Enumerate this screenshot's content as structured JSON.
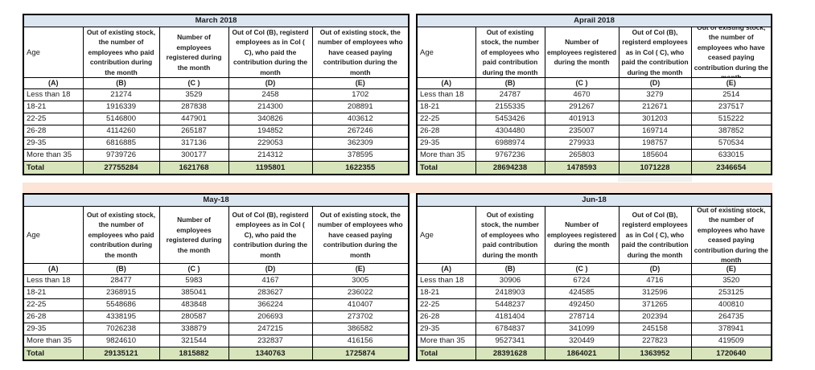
{
  "colors": {
    "title_bar_bg": "#dce6f1",
    "total_row_bg": "#d7e4bc",
    "divider_band_bg": "#fce4d6",
    "border": "#000000",
    "text": "#1c1c1c"
  },
  "column_headers": [
    "Age",
    "Out of existing stock, the number of employees who paid contribution during the month",
    "Number of employees registered during the month",
    "Out of Col (B), registerd employees as in Col ( C), who paid the contribution during the month",
    "Out of existing stock, the number of  employees who have ceased paying contribution during the month"
  ],
  "letter_row": [
    "(A)",
    "(B)",
    "(C )",
    "(D)",
    "(E)"
  ],
  "age_groups": [
    "Less than 18",
    "18-21",
    "22-25",
    "26-28",
    "29-35",
    "More than 35"
  ],
  "total_label": "Total",
  "tables": [
    {
      "title": "March 2018",
      "rows": [
        [
          21274,
          3529,
          2458,
          1702
        ],
        [
          1916339,
          287838,
          214300,
          208891
        ],
        [
          5146800,
          447901,
          340826,
          403612
        ],
        [
          4114260,
          265187,
          194852,
          267246
        ],
        [
          6816885,
          317136,
          229053,
          362309
        ],
        [
          9739726,
          300177,
          214312,
          378595
        ]
      ],
      "totals": [
        27755284,
        1621768,
        1195801,
        1622355
      ]
    },
    {
      "title": "Aprail 2018",
      "rows": [
        [
          24787,
          4670,
          3279,
          2514
        ],
        [
          2155335,
          291267,
          212671,
          237517
        ],
        [
          5453426,
          401913,
          301203,
          515222
        ],
        [
          4304480,
          235007,
          169714,
          387852
        ],
        [
          6988974,
          279933,
          198757,
          570534
        ],
        [
          9767236,
          265803,
          185604,
          633015
        ]
      ],
      "totals": [
        28694238,
        1478593,
        1071228,
        2346654
      ]
    },
    {
      "title": "May-18",
      "rows": [
        [
          28477,
          5983,
          4167,
          3005
        ],
        [
          2368915,
          385041,
          283627,
          236022
        ],
        [
          5548686,
          483848,
          366224,
          410407
        ],
        [
          4338195,
          280587,
          206693,
          273702
        ],
        [
          7026238,
          338879,
          247215,
          386582
        ],
        [
          9824610,
          321544,
          232837,
          416156
        ]
      ],
      "totals": [
        29135121,
        1815882,
        1340763,
        1725874
      ]
    },
    {
      "title": "Jun-18",
      "rows": [
        [
          30906,
          6724,
          4716,
          3520
        ],
        [
          2418903,
          424585,
          312596,
          253125
        ],
        [
          5448237,
          492450,
          371265,
          400810
        ],
        [
          4181404,
          278714,
          202394,
          264735
        ],
        [
          6784837,
          341099,
          245158,
          378941
        ],
        [
          9527341,
          320449,
          227823,
          419509
        ]
      ],
      "totals": [
        28391628,
        1864021,
        1363952,
        1720640
      ]
    }
  ]
}
